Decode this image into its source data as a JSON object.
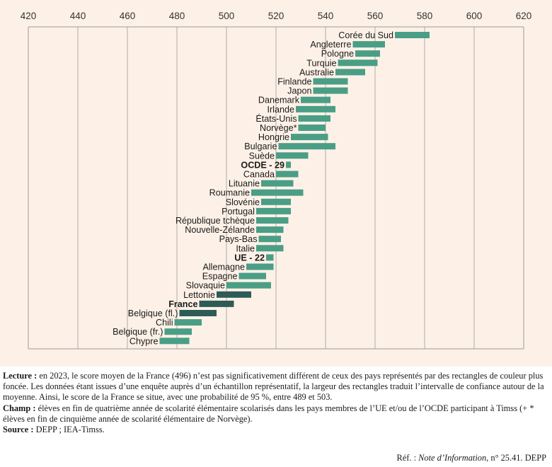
{
  "colors": {
    "normal": "#4a9e86",
    "dark": "#2e5b57",
    "grid": "#9a9a9a",
    "axis_text": "#333333",
    "background": "#fdf1e7"
  },
  "chart_data": {
    "type": "bar",
    "subtype": "floating-range",
    "title": "",
    "xlabel": "",
    "ylabel": "",
    "xlim": [
      420,
      620
    ],
    "x_ticks": [
      420,
      440,
      460,
      480,
      500,
      520,
      540,
      560,
      580,
      600,
      620
    ],
    "x_tick_labels": [
      "420",
      "440",
      "460",
      "480",
      "500",
      "520",
      "540",
      "560",
      "580",
      "600",
      "620"
    ],
    "grid": true,
    "series": [
      {
        "label": "Corée du Sud",
        "low": 568,
        "high": 582,
        "highlight": false,
        "bold": false
      },
      {
        "label": "Angleterre",
        "low": 551,
        "high": 564,
        "highlight": false,
        "bold": false
      },
      {
        "label": "Pologne",
        "low": 552,
        "high": 562,
        "highlight": false,
        "bold": false
      },
      {
        "label": "Turquie",
        "low": 545,
        "high": 561,
        "highlight": false,
        "bold": false
      },
      {
        "label": "Australie",
        "low": 544,
        "high": 556,
        "highlight": false,
        "bold": false
      },
      {
        "label": "Finlande",
        "low": 535,
        "high": 549,
        "highlight": false,
        "bold": false
      },
      {
        "label": "Japon",
        "low": 535,
        "high": 549,
        "highlight": false,
        "bold": false
      },
      {
        "label": "Danemark",
        "low": 530,
        "high": 542,
        "highlight": false,
        "bold": false
      },
      {
        "label": "Irlande",
        "low": 528,
        "high": 544,
        "highlight": false,
        "bold": false
      },
      {
        "label": "États-Unis",
        "low": 529,
        "high": 542,
        "highlight": false,
        "bold": false
      },
      {
        "label": "Norvège*",
        "low": 529,
        "high": 540,
        "highlight": false,
        "bold": false
      },
      {
        "label": "Hongrie",
        "low": 526,
        "high": 541,
        "highlight": false,
        "bold": false
      },
      {
        "label": "Bulgarie",
        "low": 521,
        "high": 544,
        "highlight": false,
        "bold": false
      },
      {
        "label": "Suède",
        "low": 520,
        "high": 533,
        "highlight": false,
        "bold": false
      },
      {
        "label": "OCDE - 29",
        "low": 524,
        "high": 526,
        "highlight": false,
        "bold": true
      },
      {
        "label": "Canada",
        "low": 520,
        "high": 529,
        "highlight": false,
        "bold": false
      },
      {
        "label": "Lituanie",
        "low": 514,
        "high": 527,
        "highlight": false,
        "bold": false
      },
      {
        "label": "Roumanie",
        "low": 510,
        "high": 531,
        "highlight": false,
        "bold": false
      },
      {
        "label": "Slovénie",
        "low": 514,
        "high": 526,
        "highlight": false,
        "bold": false
      },
      {
        "label": "Portugal",
        "low": 512,
        "high": 526,
        "highlight": false,
        "bold": false
      },
      {
        "label": "République tchèque",
        "low": 512,
        "high": 525,
        "highlight": false,
        "bold": false
      },
      {
        "label": "Nouvelle-Zélande",
        "low": 512,
        "high": 523,
        "highlight": false,
        "bold": false
      },
      {
        "label": "Pays-Bas",
        "low": 513,
        "high": 522,
        "highlight": false,
        "bold": false
      },
      {
        "label": "Italie",
        "low": 512,
        "high": 523,
        "highlight": false,
        "bold": false
      },
      {
        "label": "UE - 22",
        "low": 516,
        "high": 519,
        "highlight": false,
        "bold": true
      },
      {
        "label": "Allemagne",
        "low": 508,
        "high": 519,
        "highlight": false,
        "bold": false
      },
      {
        "label": "Espagne",
        "low": 505,
        "high": 516,
        "highlight": false,
        "bold": false
      },
      {
        "label": "Slovaquie",
        "low": 500,
        "high": 518,
        "highlight": false,
        "bold": false
      },
      {
        "label": "Lettonie",
        "low": 496,
        "high": 510,
        "highlight": true,
        "bold": false
      },
      {
        "label": "France",
        "low": 489,
        "high": 503,
        "highlight": true,
        "bold": true
      },
      {
        "label": "Belgique (fl.)",
        "low": 481,
        "high": 496,
        "highlight": true,
        "bold": false
      },
      {
        "label": "Chili",
        "low": 479,
        "high": 490,
        "highlight": false,
        "bold": false
      },
      {
        "label": "Belgique (fr.)",
        "low": 475,
        "high": 486,
        "highlight": false,
        "bold": false
      },
      {
        "label": "Chypre",
        "low": 473,
        "high": 485,
        "highlight": false,
        "bold": false
      }
    ]
  },
  "notes": {
    "lecture_label": "Lecture :",
    "lecture_text": " en 2023, le score moyen de la France (496) n’est pas significativement différent de ceux des pays représentés par des rectangles de couleur plus foncée. Les données étant issues d’une enquête auprès d’un échantillon représentatif, la largeur des rectangles traduit l’intervalle de confiance autour de la moyenne. Ainsi, le score de la France se situe, avec une probabilité de 95 %, entre 489 et 503.",
    "champ_label": "Champ :",
    "champ_text": " élèves en fin de quatrième année de scolarité élémentaire scolarisés dans les pays membres de l’UE et/ou de l’OCDE participant à Timss (+ * élèves en fin de cinquième année de scolarité élémentaire de Norvège).",
    "source_label": "Source :",
    "source_text": " DEPP ; IEA-Timss.",
    "ref_prefix": "Réf. : ",
    "ref_italic": "Note d’Information",
    "ref_suffix": ", n° 25.41. DEPP"
  }
}
